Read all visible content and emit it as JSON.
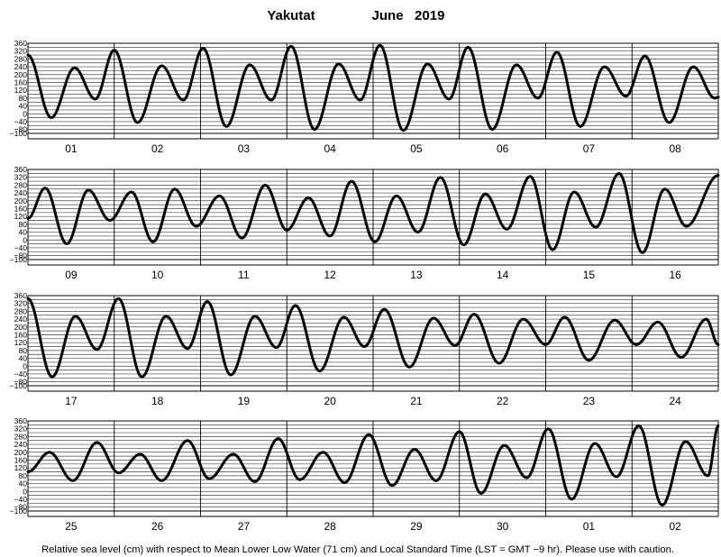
{
  "header": {
    "station": "Yakutat",
    "month_year": "June   2019"
  },
  "footer": {
    "note": "Relative sea level (cm) with respect to Mean Lower Low Water (71 cm) and Local Standard Time (LST = GMT −9 hr). Please use with caution."
  },
  "chart_data": {
    "type": "line",
    "title": "Yakutat          June   2019",
    "ylabel": "",
    "xlabel": "",
    "y_ticks": [
      "360",
      "320",
      "280",
      "240",
      "200",
      "160",
      "120",
      "80",
      "40",
      "0",
      "−40",
      "−80",
      "−100"
    ],
    "ylim": [
      -100,
      360
    ],
    "grid": true,
    "panels": [
      {
        "days": [
          "01",
          "02",
          "03",
          "04",
          "05",
          "06",
          "07",
          "08"
        ],
        "extrema": [
          {
            "t": 0.0,
            "v": 300
          },
          {
            "t": 0.27,
            "v": -20
          },
          {
            "t": 0.54,
            "v": 235
          },
          {
            "t": 0.78,
            "v": 75
          },
          {
            "t": 1.0,
            "v": 325
          },
          {
            "t": 1.27,
            "v": -45
          },
          {
            "t": 1.55,
            "v": 245
          },
          {
            "t": 1.8,
            "v": 70
          },
          {
            "t": 2.03,
            "v": 335
          },
          {
            "t": 2.3,
            "v": -65
          },
          {
            "t": 2.57,
            "v": 250
          },
          {
            "t": 2.82,
            "v": 70
          },
          {
            "t": 3.05,
            "v": 345
          },
          {
            "t": 3.32,
            "v": -80
          },
          {
            "t": 3.6,
            "v": 255
          },
          {
            "t": 3.85,
            "v": 70
          },
          {
            "t": 4.08,
            "v": 350
          },
          {
            "t": 4.35,
            "v": -85
          },
          {
            "t": 4.63,
            "v": 255
          },
          {
            "t": 4.88,
            "v": 75
          },
          {
            "t": 5.1,
            "v": 340
          },
          {
            "t": 5.38,
            "v": -80
          },
          {
            "t": 5.66,
            "v": 250
          },
          {
            "t": 5.91,
            "v": 80
          },
          {
            "t": 6.13,
            "v": 315
          },
          {
            "t": 6.4,
            "v": -65
          },
          {
            "t": 6.68,
            "v": 240
          },
          {
            "t": 6.93,
            "v": 90
          },
          {
            "t": 7.15,
            "v": 295
          },
          {
            "t": 7.43,
            "v": -45
          },
          {
            "t": 7.71,
            "v": 240
          },
          {
            "t": 7.96,
            "v": 80
          },
          {
            "t": 8.0,
            "v": 85
          }
        ]
      },
      {
        "days": [
          "09",
          "10",
          "11",
          "12",
          "13",
          "14",
          "15",
          "16"
        ],
        "extrema": [
          {
            "t": 0.0,
            "v": 110
          },
          {
            "t": 0.2,
            "v": 265
          },
          {
            "t": 0.45,
            "v": -20
          },
          {
            "t": 0.7,
            "v": 255
          },
          {
            "t": 0.95,
            "v": 100
          },
          {
            "t": 1.2,
            "v": 245
          },
          {
            "t": 1.45,
            "v": -10
          },
          {
            "t": 1.7,
            "v": 260
          },
          {
            "t": 1.95,
            "v": 70
          },
          {
            "t": 2.22,
            "v": 225
          },
          {
            "t": 2.48,
            "v": 10
          },
          {
            "t": 2.75,
            "v": 280
          },
          {
            "t": 3.0,
            "v": 50
          },
          {
            "t": 3.25,
            "v": 215
          },
          {
            "t": 3.5,
            "v": 20
          },
          {
            "t": 3.75,
            "v": 300
          },
          {
            "t": 4.02,
            "v": -10
          },
          {
            "t": 4.27,
            "v": 225
          },
          {
            "t": 4.52,
            "v": 40
          },
          {
            "t": 4.78,
            "v": 320
          },
          {
            "t": 5.05,
            "v": -25
          },
          {
            "t": 5.3,
            "v": 235
          },
          {
            "t": 5.55,
            "v": 55
          },
          {
            "t": 5.82,
            "v": 325
          },
          {
            "t": 6.08,
            "v": -50
          },
          {
            "t": 6.33,
            "v": 245
          },
          {
            "t": 6.58,
            "v": 65
          },
          {
            "t": 6.85,
            "v": 340
          },
          {
            "t": 7.12,
            "v": -65
          },
          {
            "t": 7.38,
            "v": 260
          },
          {
            "t": 7.63,
            "v": 70
          },
          {
            "t": 8.0,
            "v": 330
          }
        ]
      },
      {
        "days": [
          "17",
          "18",
          "19",
          "20",
          "21",
          "22",
          "23",
          "24"
        ],
        "extrema": [
          {
            "t": 0.0,
            "v": 345
          },
          {
            "t": 0.28,
            "v": -55
          },
          {
            "t": 0.55,
            "v": 255
          },
          {
            "t": 0.8,
            "v": 85
          },
          {
            "t": 1.05,
            "v": 345
          },
          {
            "t": 1.32,
            "v": -55
          },
          {
            "t": 1.6,
            "v": 255
          },
          {
            "t": 1.85,
            "v": 90
          },
          {
            "t": 2.08,
            "v": 330
          },
          {
            "t": 2.35,
            "v": -45
          },
          {
            "t": 2.63,
            "v": 255
          },
          {
            "t": 2.88,
            "v": 95
          },
          {
            "t": 3.1,
            "v": 310
          },
          {
            "t": 3.38,
            "v": -25
          },
          {
            "t": 3.66,
            "v": 250
          },
          {
            "t": 3.9,
            "v": 100
          },
          {
            "t": 4.13,
            "v": 290
          },
          {
            "t": 4.42,
            "v": -5
          },
          {
            "t": 4.7,
            "v": 245
          },
          {
            "t": 4.95,
            "v": 105
          },
          {
            "t": 5.17,
            "v": 265
          },
          {
            "t": 5.46,
            "v": 15
          },
          {
            "t": 5.74,
            "v": 240
          },
          {
            "t": 6.0,
            "v": 110
          },
          {
            "t": 6.22,
            "v": 250
          },
          {
            "t": 6.5,
            "v": 30
          },
          {
            "t": 6.8,
            "v": 235
          },
          {
            "t": 7.05,
            "v": 110
          },
          {
            "t": 7.3,
            "v": 225
          },
          {
            "t": 7.57,
            "v": 45
          },
          {
            "t": 7.86,
            "v": 240
          },
          {
            "t": 8.0,
            "v": 110
          }
        ]
      },
      {
        "days": [
          "25",
          "26",
          "27",
          "28",
          "29",
          "30",
          "01",
          "02"
        ],
        "extrema": [
          {
            "t": 0.0,
            "v": 100
          },
          {
            "t": 0.25,
            "v": 200
          },
          {
            "t": 0.52,
            "v": 55
          },
          {
            "t": 0.8,
            "v": 250
          },
          {
            "t": 1.05,
            "v": 95
          },
          {
            "t": 1.3,
            "v": 190
          },
          {
            "t": 1.55,
            "v": 55
          },
          {
            "t": 1.85,
            "v": 260
          },
          {
            "t": 2.1,
            "v": 65
          },
          {
            "t": 2.38,
            "v": 190
          },
          {
            "t": 2.63,
            "v": 50
          },
          {
            "t": 2.9,
            "v": 270
          },
          {
            "t": 3.15,
            "v": 60
          },
          {
            "t": 3.42,
            "v": 200
          },
          {
            "t": 3.67,
            "v": 45
          },
          {
            "t": 3.95,
            "v": 290
          },
          {
            "t": 4.22,
            "v": 30
          },
          {
            "t": 4.48,
            "v": 215
          },
          {
            "t": 4.73,
            "v": 55
          },
          {
            "t": 5.0,
            "v": 305
          },
          {
            "t": 5.25,
            "v": -10
          },
          {
            "t": 5.52,
            "v": 235
          },
          {
            "t": 5.78,
            "v": 70
          },
          {
            "t": 6.03,
            "v": 320
          },
          {
            "t": 6.3,
            "v": -40
          },
          {
            "t": 6.57,
            "v": 245
          },
          {
            "t": 6.82,
            "v": 75
          },
          {
            "t": 7.08,
            "v": 335
          },
          {
            "t": 7.35,
            "v": -70
          },
          {
            "t": 7.62,
            "v": 255
          },
          {
            "t": 7.88,
            "v": 80
          },
          {
            "t": 8.0,
            "v": 335
          }
        ]
      }
    ]
  }
}
